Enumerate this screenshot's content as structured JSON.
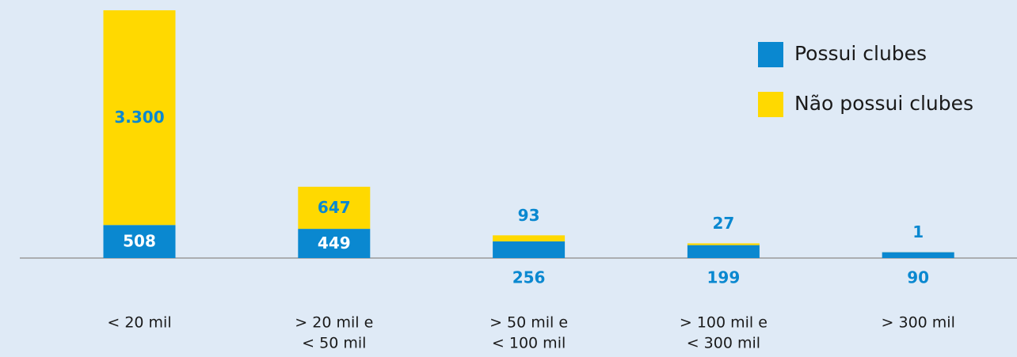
{
  "chart_data": {
    "type": "stacked_bar",
    "categories": [
      [
        "< 20 mil"
      ],
      [
        "> 20 mil e",
        "< 50 mil"
      ],
      [
        "> 50 mil e",
        "< 100 mil"
      ],
      [
        "> 100 mil e",
        "< 300 mil"
      ],
      [
        "> 300 mil"
      ]
    ],
    "series": [
      {
        "name": "Possui clubes",
        "color": "#0a88d0",
        "values": [
          508,
          449,
          256,
          199,
          90
        ]
      },
      {
        "name": "Não possui clubes",
        "color": "#ffd900",
        "values": [
          3300,
          647,
          93,
          27,
          1
        ],
        "value_labels": [
          "3.300",
          "647",
          "93",
          "27",
          "1"
        ]
      }
    ]
  }
}
